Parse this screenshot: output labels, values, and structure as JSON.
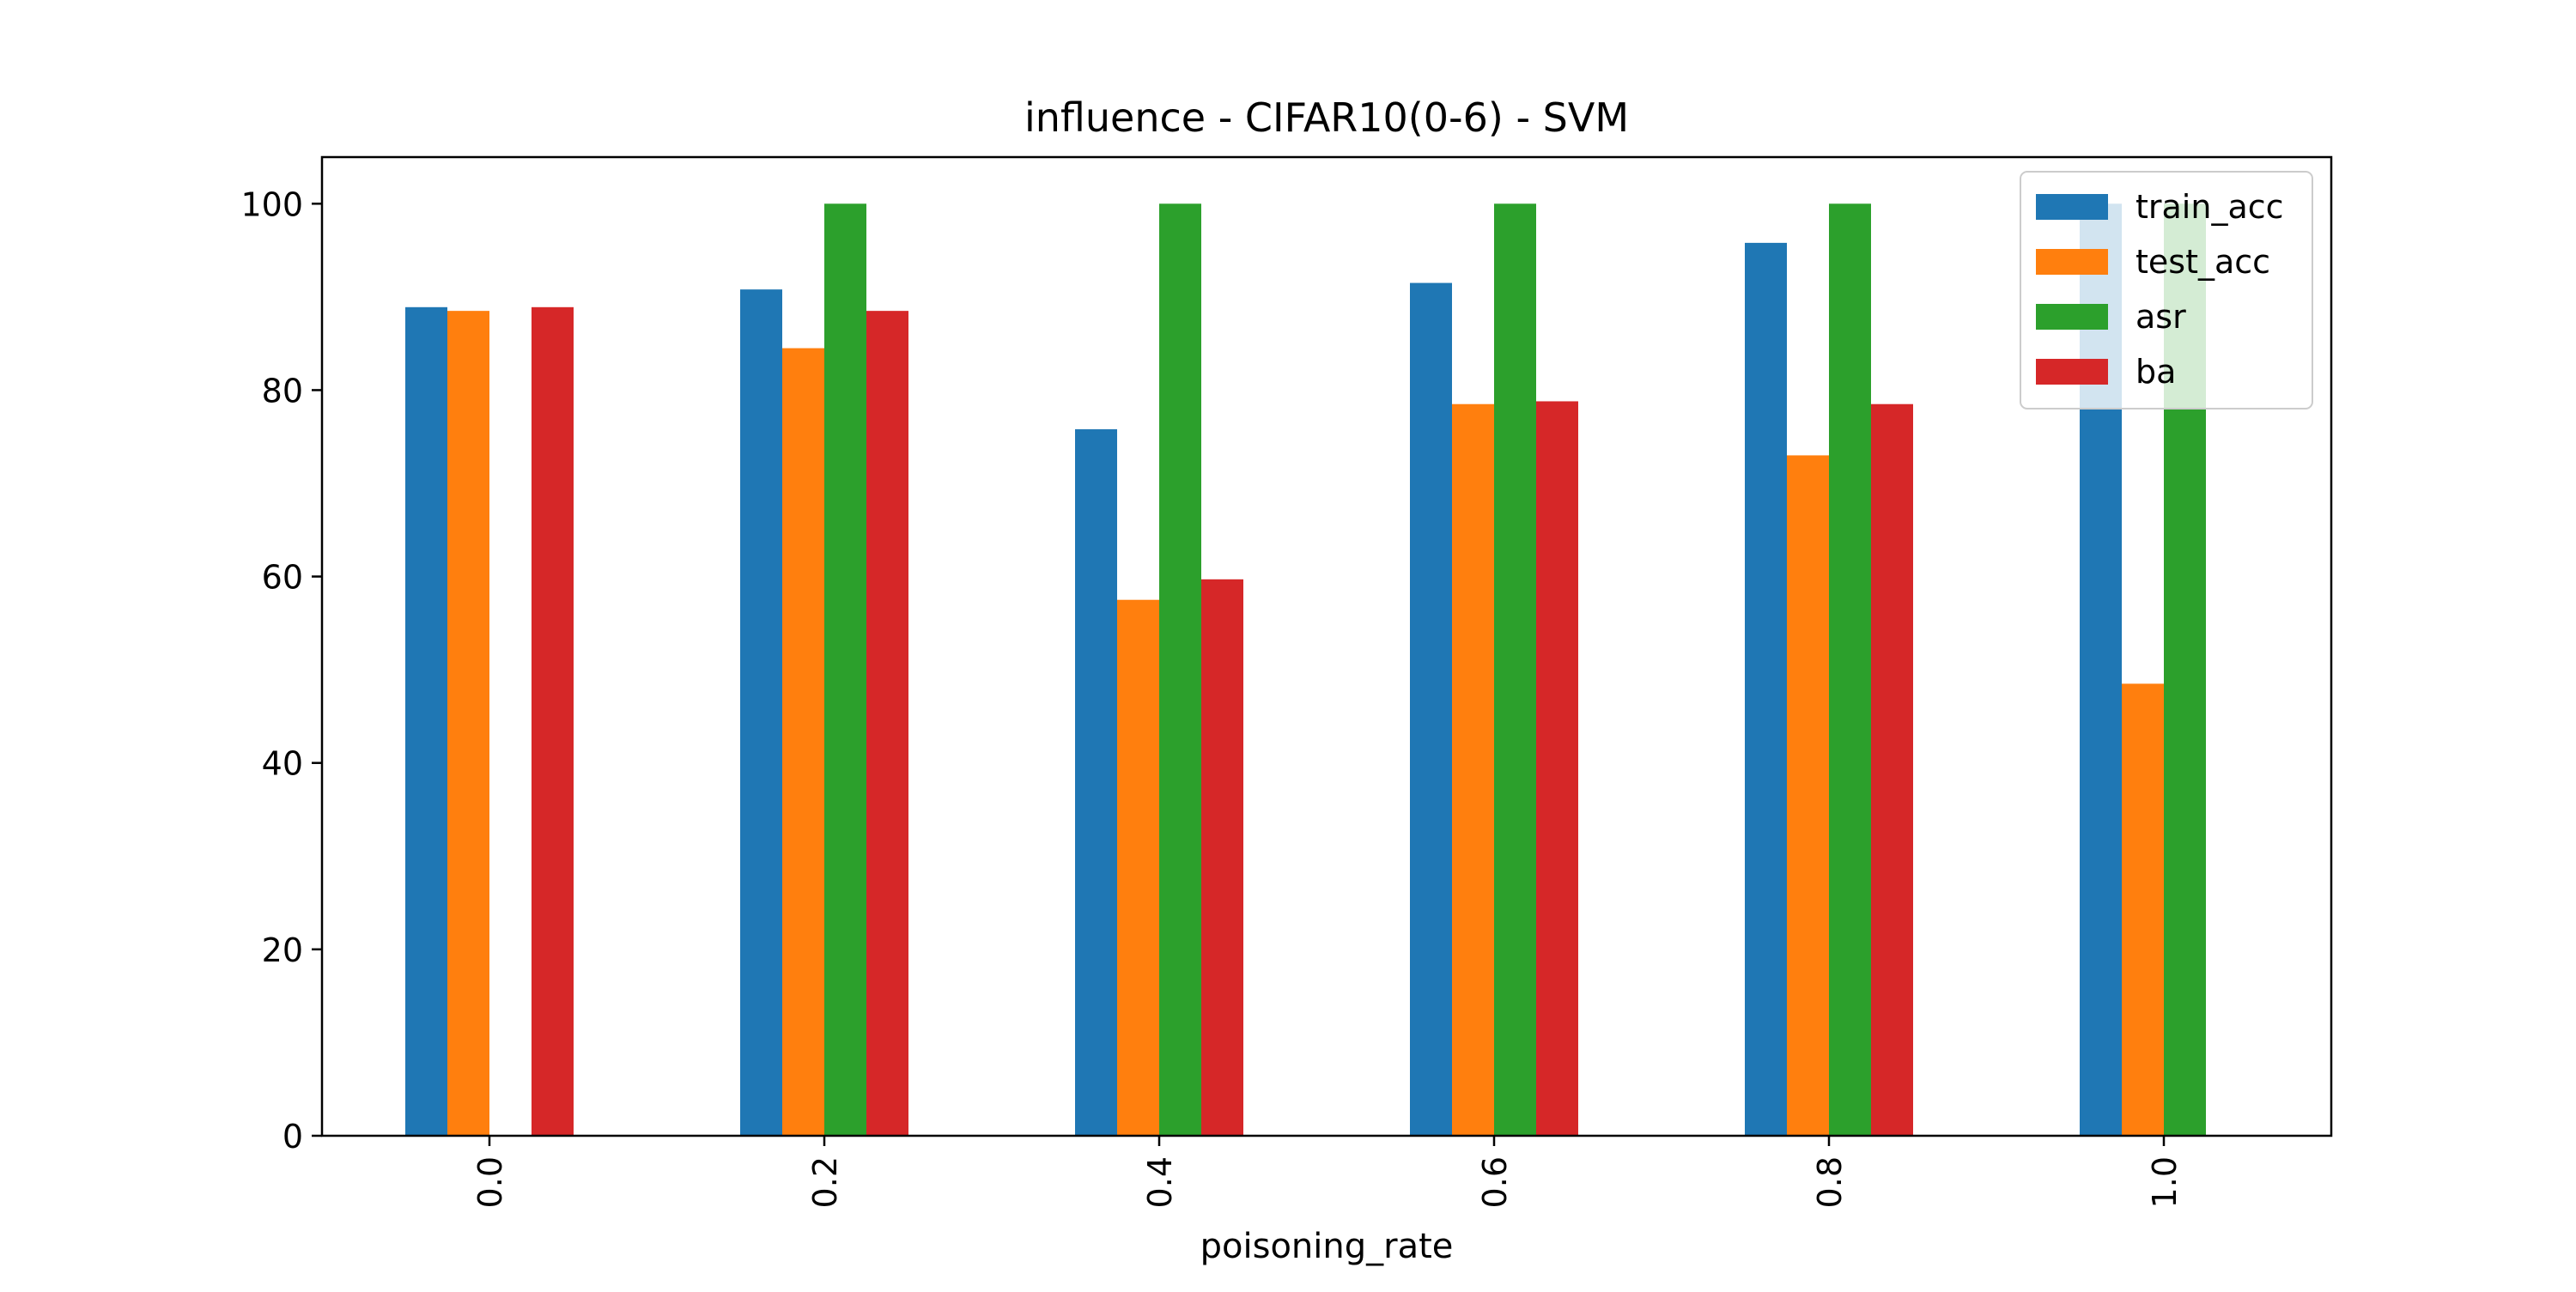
{
  "chart_data": {
    "type": "bar",
    "title": "influence - CIFAR10(0-6) - SVM",
    "xlabel": "poisoning_rate",
    "ylabel": "",
    "categories": [
      "0.0",
      "0.2",
      "0.4",
      "0.6",
      "0.8",
      "1.0"
    ],
    "ylim": [
      0,
      105
    ],
    "yticks": [
      0,
      20,
      40,
      60,
      80,
      100
    ],
    "grid": false,
    "legend_position": "top-right",
    "series": [
      {
        "name": "train_acc",
        "color": "#1f77b4",
        "values": [
          88.9,
          90.8,
          75.8,
          91.5,
          95.8,
          100.0
        ]
      },
      {
        "name": "test_acc",
        "color": "#ff7f0e",
        "values": [
          88.5,
          84.5,
          57.5,
          78.5,
          73.0,
          48.5
        ]
      },
      {
        "name": "asr",
        "color": "#2ca02c",
        "values": [
          0,
          100.0,
          100.0,
          100.0,
          100.0,
          100.0
        ]
      },
      {
        "name": "ba",
        "color": "#d62728",
        "values": [
          88.9,
          88.5,
          59.7,
          78.8,
          78.5,
          0
        ]
      }
    ]
  }
}
